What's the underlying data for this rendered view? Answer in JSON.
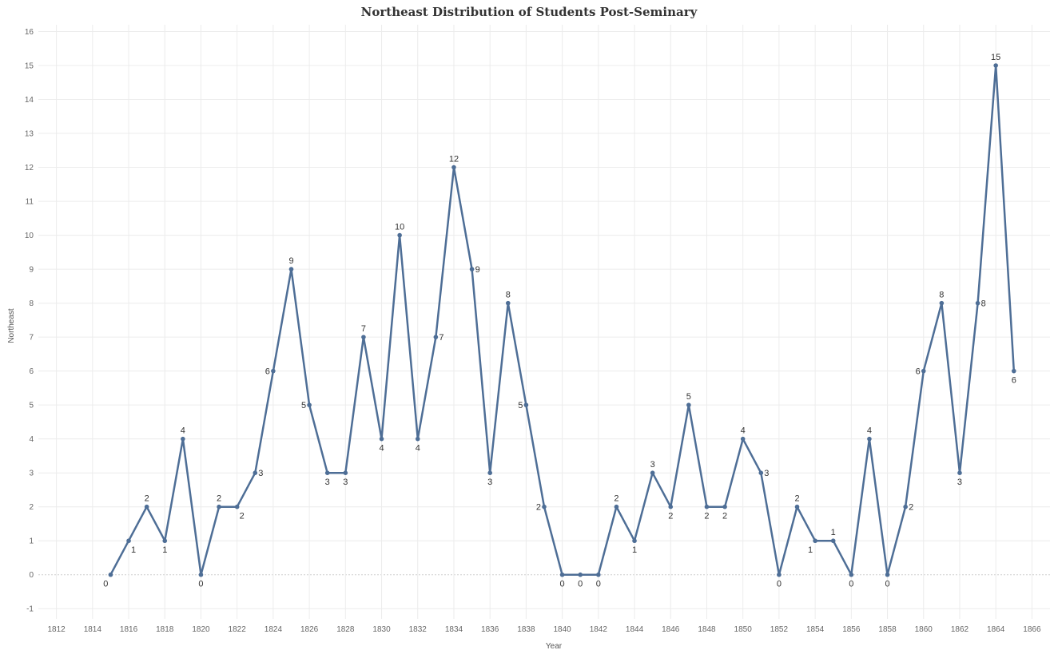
{
  "chart_data": {
    "type": "line",
    "title": "Northeast Distribution of Students Post-Seminary",
    "xlabel": "Year",
    "ylabel": "Northeast",
    "xlim": [
      1811,
      1867
    ],
    "ylim": [
      -1.3,
      16.2
    ],
    "x_ticks": [
      1812,
      1814,
      1816,
      1818,
      1820,
      1822,
      1824,
      1826,
      1828,
      1830,
      1832,
      1834,
      1836,
      1838,
      1840,
      1842,
      1844,
      1846,
      1848,
      1850,
      1852,
      1854,
      1856,
      1858,
      1860,
      1862,
      1864,
      1866
    ],
    "y_ticks": [
      -1,
      0,
      1,
      2,
      3,
      4,
      5,
      6,
      7,
      8,
      9,
      10,
      11,
      12,
      13,
      14,
      15,
      16
    ],
    "grid": true,
    "color": "#4e6e96",
    "series": [
      {
        "x": [
          1815,
          1816,
          1817,
          1818,
          1819,
          1820,
          1821,
          1822,
          1823,
          1824,
          1825,
          1826,
          1827,
          1828,
          1829,
          1830,
          1831,
          1832,
          1833,
          1834,
          1835,
          1836,
          1837,
          1838,
          1839,
          1840,
          1841,
          1842,
          1843,
          1844,
          1845,
          1846,
          1847,
          1848,
          1849,
          1850,
          1851,
          1852,
          1853,
          1854,
          1855,
          1856,
          1857,
          1858,
          1859,
          1860,
          1861,
          1862,
          1863,
          1864,
          1865
        ],
        "values": [
          0,
          1,
          2,
          1,
          4,
          0,
          2,
          2,
          3,
          6,
          9,
          5,
          3,
          3,
          7,
          4,
          10,
          4,
          7,
          12,
          9,
          3,
          8,
          5,
          2,
          0,
          0,
          0,
          2,
          1,
          3,
          2,
          5,
          2,
          2,
          4,
          3,
          0,
          2,
          1,
          1,
          0,
          4,
          0,
          2,
          6,
          8,
          3,
          8,
          15,
          6
        ],
        "label_pos": [
          "bl",
          "br",
          "a",
          "b",
          "a",
          "b",
          "a",
          "br",
          "r",
          "l",
          "a",
          "l",
          "b",
          "b",
          "a",
          "b",
          "a",
          "b",
          "r",
          "a",
          "r",
          "b",
          "a",
          "l",
          "l",
          "b",
          "b",
          "b",
          "a",
          "b",
          "a",
          "b",
          "a",
          "b",
          "b",
          "a",
          "r",
          "b",
          "a",
          "bl",
          "a",
          "b",
          "a",
          "b",
          "r",
          "l",
          "a",
          "b",
          "r",
          "a",
          "b"
        ]
      }
    ]
  }
}
